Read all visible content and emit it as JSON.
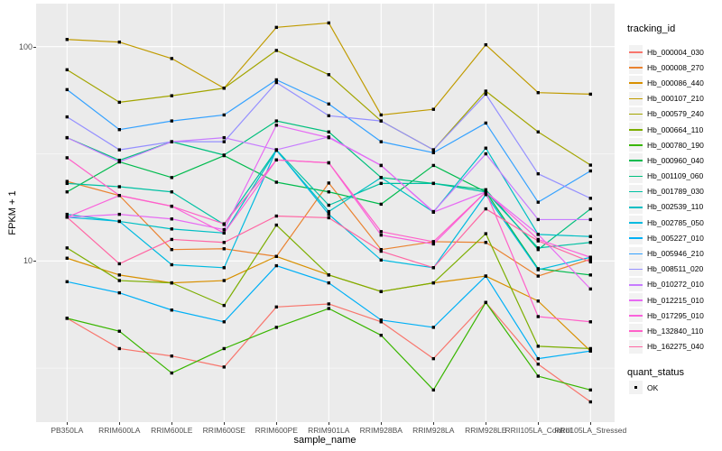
{
  "colors": {
    "page_background": "#FFFFFF",
    "panel_background": "#EBEBEB",
    "grid": "#FFFFFF",
    "tick_label": "#4D4D4D",
    "axis_title": "#000000",
    "legend_key_background": "#F2F2F2",
    "marker": "#000000"
  },
  "chart_data": {
    "type": "line",
    "title": "",
    "xlabel": "sample_name",
    "ylabel": "FPKM + 1",
    "y_scale": "log10",
    "ylim": [
      1.77,
      159
    ],
    "y_tick_values": [
      100,
      10
    ],
    "y_tick_labels": [
      "100",
      "10"
    ],
    "y_minor_gridlines": [
      31.62,
      3.162
    ],
    "grid": true,
    "legend_position": "right",
    "x_categories": [
      "PB350LA",
      "RRIM600LA",
      "RRIM600LE",
      "RRIM600SE",
      "RRIM600PE",
      "RRIM901LA",
      "RRIM928BA",
      "RRIM928LA",
      "RRIM928LE",
      "RRII105LA_Control",
      "RRII105LA_Stressed"
    ],
    "legend_titles": {
      "color": "tracking_id",
      "shape": "quant_status"
    },
    "quant_status_items": [
      {
        "label": "OK",
        "color": "#000000",
        "shape": "square"
      }
    ],
    "point_marker": {
      "shape": "square",
      "color": "#000000",
      "size": 3.4
    },
    "series": [
      {
        "name": "Hb_000004_030",
        "color": "#F8766D",
        "values": [
          5.4,
          3.9,
          3.6,
          3.2,
          6.1,
          6.3,
          5.2,
          3.5,
          6.4,
          3.3,
          2.2
        ]
      },
      {
        "name": "Hb_000008_270",
        "color": "#EA8331",
        "values": [
          23.5,
          20.2,
          11.3,
          11.4,
          10.5,
          23.1,
          11.3,
          12.3,
          12.2,
          8.5,
          10.2
        ]
      },
      {
        "name": "Hb_000086_440",
        "color": "#D89000",
        "values": [
          10.3,
          8.6,
          7.9,
          8.1,
          10.5,
          8.6,
          7.2,
          7.9,
          8.5,
          6.5,
          3.8
        ]
      },
      {
        "name": "Hb_000107_210",
        "color": "#C09B00",
        "values": [
          108,
          105,
          88,
          64,
          123,
          129,
          48,
          51,
          102,
          61,
          60
        ]
      },
      {
        "name": "Hb_000579_240",
        "color": "#A3A500",
        "values": [
          78,
          55,
          59,
          64,
          96,
          74,
          45,
          33,
          62,
          40,
          28
        ]
      },
      {
        "name": "Hb_000664_110",
        "color": "#7CAE00",
        "values": [
          11.5,
          8.1,
          7.9,
          6.2,
          14.7,
          8.6,
          7.2,
          7.9,
          13.4,
          4.0,
          3.9
        ]
      },
      {
        "name": "Hb_000780_190",
        "color": "#39B600",
        "values": [
          5.4,
          4.7,
          3.0,
          3.9,
          4.9,
          6.0,
          4.5,
          2.5,
          6.4,
          2.9,
          2.5
        ]
      },
      {
        "name": "Hb_000960_040",
        "color": "#00BB4E",
        "values": [
          21.0,
          29.0,
          24.5,
          31.0,
          23.3,
          21.0,
          18.4,
          27.9,
          21.0,
          9.2,
          8.6
        ]
      },
      {
        "name": "Hb_001109_060",
        "color": "#00BF7D",
        "values": [
          37.6,
          29.5,
          36.0,
          31.2,
          45.0,
          40.0,
          24.5,
          23.0,
          21.5,
          11.3,
          17.5
        ]
      },
      {
        "name": "Hb_001789_030",
        "color": "#00C1A3",
        "values": [
          23.0,
          22.2,
          21.0,
          14.8,
          33.0,
          18.2,
          23.0,
          23.0,
          21.0,
          11.5,
          12.2
        ]
      },
      {
        "name": "Hb_002539_110",
        "color": "#00BFC4",
        "values": [
          16.5,
          15.3,
          14.1,
          13.5,
          32.8,
          17.0,
          24.5,
          16.9,
          33.6,
          13.3,
          13.0
        ]
      },
      {
        "name": "Hb_002785_050",
        "color": "#00BAE0",
        "values": [
          16.0,
          15.3,
          9.6,
          9.3,
          33.0,
          16.5,
          10.1,
          9.3,
          20.4,
          9.1,
          10.4
        ]
      },
      {
        "name": "Hb_005227_010",
        "color": "#00B0F6",
        "values": [
          8.0,
          7.1,
          5.9,
          5.2,
          9.5,
          7.9,
          5.3,
          4.9,
          8.5,
          3.5,
          3.8
        ]
      },
      {
        "name": "Hb_005946_210",
        "color": "#35A2FF",
        "values": [
          63,
          41,
          45,
          48,
          70,
          54,
          36,
          32,
          44,
          18.8,
          26.3
        ]
      },
      {
        "name": "Hb_008511_020",
        "color": "#9590FF",
        "values": [
          47,
          33,
          36,
          36,
          68,
          47.6,
          45,
          33,
          60,
          25.5,
          19.6
        ]
      },
      {
        "name": "Hb_010272_010",
        "color": "#C77CFF",
        "values": [
          37.6,
          29.0,
          36.0,
          37.6,
          33.0,
          37.9,
          27.9,
          17.0,
          31.6,
          15.6,
          15.6
        ]
      },
      {
        "name": "Hb_012215_010",
        "color": "#E76BF3",
        "values": [
          16.0,
          16.5,
          15.7,
          14.0,
          43.0,
          37.6,
          27.9,
          16.9,
          21.0,
          13.3,
          7.4
        ]
      },
      {
        "name": "Hb_017295_010",
        "color": "#FA62DB",
        "values": [
          16.0,
          20.2,
          18.0,
          13.5,
          29.6,
          28.7,
          13.2,
          12.0,
          21.0,
          12.6,
          10.4
        ]
      },
      {
        "name": "Hb_132840_110",
        "color": "#FF61C9",
        "values": [
          30.3,
          20.2,
          18.0,
          14.9,
          29.6,
          28.7,
          13.7,
          12.3,
          21.0,
          5.5,
          5.2
        ]
      },
      {
        "name": "Hb_162275_040",
        "color": "#FF67A4",
        "values": [
          16.0,
          9.7,
          12.6,
          12.2,
          16.2,
          15.9,
          11.1,
          9.3,
          17.5,
          12.4,
          9.9
        ]
      }
    ]
  }
}
